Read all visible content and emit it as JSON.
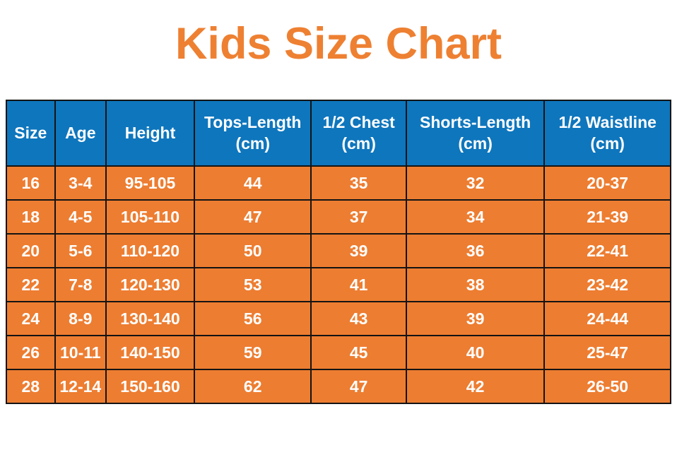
{
  "title": "Kids Size Chart",
  "colors": {
    "title_color": "#EE8032",
    "header_bg": "#0E76BD",
    "row_bg": "#ED7D31",
    "border_color": "#141414",
    "text_color": "#FFFFFF"
  },
  "table": {
    "col_widths_pct": [
      7.3,
      7.7,
      13.3,
      17.6,
      14.3,
      20.8,
      19.0
    ],
    "headers": [
      {
        "label": "Size",
        "unit": ""
      },
      {
        "label": "Age",
        "unit": ""
      },
      {
        "label": "Height",
        "unit": ""
      },
      {
        "label": "Tops-Length",
        "unit": "(cm)"
      },
      {
        "label": "1/2 Chest",
        "unit": "(cm)"
      },
      {
        "label": "Shorts-Length",
        "unit": "(cm)"
      },
      {
        "label": "1/2 Waistline",
        "unit": "(cm)"
      }
    ],
    "rows": [
      [
        "16",
        "3-4",
        "95-105",
        "44",
        "35",
        "32",
        "20-37"
      ],
      [
        "18",
        "4-5",
        "105-110",
        "47",
        "37",
        "34",
        "21-39"
      ],
      [
        "20",
        "5-6",
        "110-120",
        "50",
        "39",
        "36",
        "22-41"
      ],
      [
        "22",
        "7-8",
        "120-130",
        "53",
        "41",
        "38",
        "23-42"
      ],
      [
        "24",
        "8-9",
        "130-140",
        "56",
        "43",
        "39",
        "24-44"
      ],
      [
        "26",
        "10-11",
        "140-150",
        "59",
        "45",
        "40",
        "25-47"
      ],
      [
        "28",
        "12-14",
        "150-160",
        "62",
        "47",
        "42",
        "26-50"
      ]
    ]
  },
  "chart_data": {
    "type": "table",
    "title": "Kids Size Chart",
    "columns": [
      "Size",
      "Age",
      "Height",
      "Tops-Length (cm)",
      "1/2 Chest (cm)",
      "Shorts-Length (cm)",
      "1/2 Waistline (cm)"
    ],
    "rows": [
      [
        "16",
        "3-4",
        "95-105",
        "44",
        "35",
        "32",
        "20-37"
      ],
      [
        "18",
        "4-5",
        "105-110",
        "47",
        "37",
        "34",
        "21-39"
      ],
      [
        "20",
        "5-6",
        "110-120",
        "50",
        "39",
        "36",
        "22-41"
      ],
      [
        "22",
        "7-8",
        "120-130",
        "53",
        "41",
        "38",
        "23-42"
      ],
      [
        "24",
        "8-9",
        "130-140",
        "56",
        "43",
        "39",
        "24-44"
      ],
      [
        "26",
        "10-11",
        "140-150",
        "59",
        "45",
        "40",
        "25-47"
      ],
      [
        "28",
        "12-14",
        "150-160",
        "62",
        "47",
        "42",
        "26-50"
      ]
    ]
  }
}
